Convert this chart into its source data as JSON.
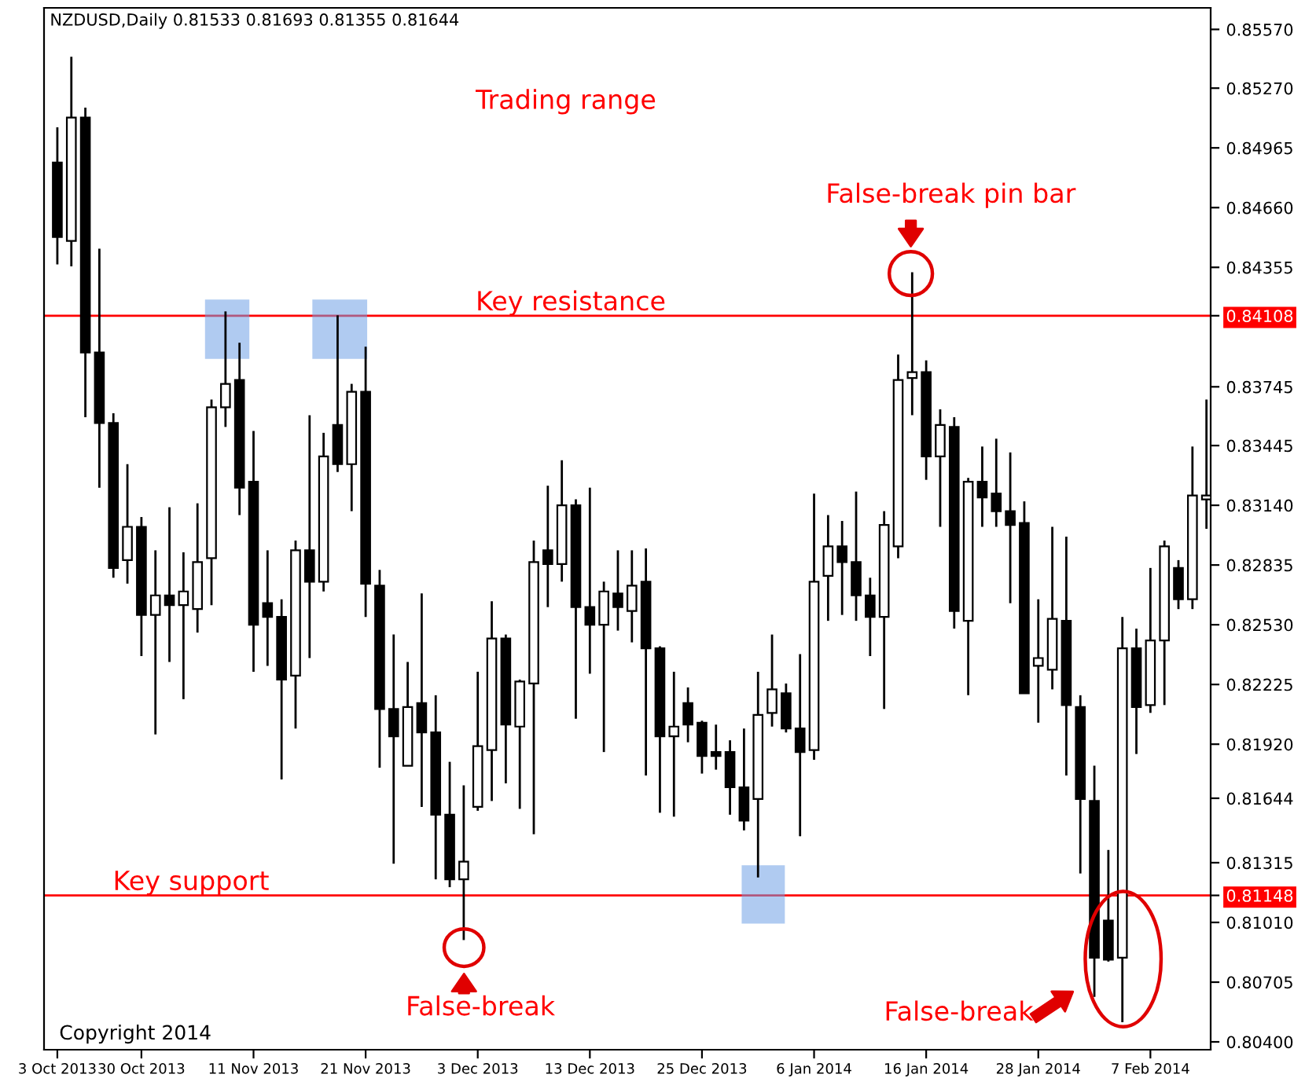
{
  "chart_data": {
    "type": "candlestick",
    "title": "NZDUSD,Daily 0.81533 0.81693 0.81355 0.81644",
    "categories": [
      "3 Oct 2013",
      null,
      null,
      null,
      null,
      null,
      "30 Oct 2013",
      null,
      null,
      null,
      null,
      null,
      null,
      null,
      "11 Nov 2013",
      null,
      null,
      null,
      null,
      null,
      null,
      null,
      "21 Nov 2013",
      null,
      null,
      null,
      null,
      null,
      null,
      null,
      "3 Dec 2013",
      null,
      null,
      null,
      null,
      null,
      null,
      null,
      "13 Dec 2013",
      null,
      null,
      null,
      null,
      null,
      null,
      null,
      "25 Dec 2013",
      null,
      null,
      null,
      null,
      null,
      null,
      null,
      "6 Jan 2014",
      null,
      null,
      null,
      null,
      null,
      null,
      null,
      "16 Jan 2014",
      null,
      null,
      null,
      null,
      null,
      null,
      null,
      "28 Jan 2014",
      null,
      null,
      null,
      null,
      null,
      null,
      null,
      "7 Feb 2014",
      null,
      null,
      null,
      null
    ],
    "ohlc": [
      [
        0.8489,
        0.8507,
        0.8437,
        0.8451
      ],
      [
        0.8449,
        0.8543,
        0.8436,
        0.8512
      ],
      [
        0.8512,
        0.8517,
        0.8359,
        0.8392
      ],
      [
        0.8392,
        0.8445,
        0.8323,
        0.8356
      ],
      [
        0.8356,
        0.8361,
        0.8277,
        0.8282
      ],
      [
        0.8286,
        0.8335,
        0.8274,
        0.8303
      ],
      [
        0.8303,
        0.8308,
        0.8237,
        0.8258
      ],
      [
        0.8258,
        0.8291,
        0.8197,
        0.8268
      ],
      [
        0.8268,
        0.8313,
        0.8234,
        0.8263
      ],
      [
        0.8263,
        0.829,
        0.8215,
        0.827
      ],
      [
        0.8261,
        0.8315,
        0.8249,
        0.8285
      ],
      [
        0.8287,
        0.8368,
        0.8263,
        0.8364
      ],
      [
        0.8364,
        0.8413,
        0.8354,
        0.8376
      ],
      [
        0.8378,
        0.8397,
        0.8309,
        0.8323
      ],
      [
        0.8326,
        0.8352,
        0.8229,
        0.8253
      ],
      [
        0.8264,
        0.8291,
        0.8232,
        0.8257
      ],
      [
        0.8257,
        0.8266,
        0.8174,
        0.8225
      ],
      [
        0.8227,
        0.8296,
        0.82,
        0.8291
      ],
      [
        0.8291,
        0.836,
        0.8236,
        0.8275
      ],
      [
        0.8275,
        0.8351,
        0.827,
        0.8339
      ],
      [
        0.8355,
        0.8411,
        0.8331,
        0.8335
      ],
      [
        0.8335,
        0.8376,
        0.8311,
        0.8372
      ],
      [
        0.8372,
        0.8395,
        0.8257,
        0.8274
      ],
      [
        0.8273,
        0.8281,
        0.818,
        0.821
      ],
      [
        0.821,
        0.8248,
        0.8131,
        0.8196
      ],
      [
        0.8181,
        0.8234,
        0.8181,
        0.8211
      ],
      [
        0.8213,
        0.8269,
        0.816,
        0.8198
      ],
      [
        0.8198,
        0.8217,
        0.8123,
        0.8156
      ],
      [
        0.8156,
        0.8183,
        0.8119,
        0.8123
      ],
      [
        0.8123,
        0.8171,
        0.8092,
        0.8132
      ],
      [
        0.816,
        0.8229,
        0.8158,
        0.8191
      ],
      [
        0.8189,
        0.8265,
        0.8163,
        0.8246
      ],
      [
        0.8246,
        0.8248,
        0.8172,
        0.8202
      ],
      [
        0.8201,
        0.8225,
        0.8159,
        0.8224
      ],
      [
        0.8223,
        0.8296,
        0.8146,
        0.8285
      ],
      [
        0.8291,
        0.8324,
        0.8262,
        0.8284
      ],
      [
        0.8284,
        0.8337,
        0.8275,
        0.8314
      ],
      [
        0.8314,
        0.8317,
        0.8205,
        0.8262
      ],
      [
        0.8262,
        0.8323,
        0.8228,
        0.8253
      ],
      [
        0.8253,
        0.8275,
        0.8188,
        0.827
      ],
      [
        0.8269,
        0.8291,
        0.825,
        0.8262
      ],
      [
        0.826,
        0.8291,
        0.8244,
        0.8273
      ],
      [
        0.8275,
        0.8292,
        0.8176,
        0.8241
      ],
      [
        0.8241,
        0.8242,
        0.8157,
        0.8196
      ],
      [
        0.8196,
        0.8229,
        0.8155,
        0.8201
      ],
      [
        0.8213,
        0.8221,
        0.8193,
        0.8202
      ],
      [
        0.8203,
        0.8204,
        0.8177,
        0.8186
      ],
      [
        0.8188,
        0.8202,
        0.8179,
        0.8186
      ],
      [
        0.8188,
        0.8194,
        0.8156,
        0.817
      ],
      [
        0.817,
        0.82,
        0.8148,
        0.8153
      ],
      [
        0.8164,
        0.8229,
        0.8124,
        0.8207
      ],
      [
        0.8208,
        0.8248,
        0.8201,
        0.822
      ],
      [
        0.8218,
        0.8223,
        0.8198,
        0.82
      ],
      [
        0.82,
        0.8238,
        0.8145,
        0.8188
      ],
      [
        0.8189,
        0.832,
        0.8184,
        0.8275
      ],
      [
        0.8278,
        0.8309,
        0.8255,
        0.8293
      ],
      [
        0.8293,
        0.8306,
        0.8258,
        0.8285
      ],
      [
        0.8285,
        0.8321,
        0.8255,
        0.8268
      ],
      [
        0.8268,
        0.8277,
        0.8237,
        0.8257
      ],
      [
        0.8257,
        0.8311,
        0.821,
        0.8304
      ],
      [
        0.8293,
        0.8391,
        0.8287,
        0.8378
      ],
      [
        0.8379,
        0.8433,
        0.836,
        0.8382
      ],
      [
        0.8382,
        0.8388,
        0.8327,
        0.8339
      ],
      [
        0.8339,
        0.8363,
        0.8303,
        0.8355
      ],
      [
        0.8354,
        0.8359,
        0.8251,
        0.826
      ],
      [
        0.8255,
        0.8328,
        0.8217,
        0.8326
      ],
      [
        0.8326,
        0.8344,
        0.8303,
        0.8318
      ],
      [
        0.832,
        0.8348,
        0.8303,
        0.8311
      ],
      [
        0.8311,
        0.8341,
        0.8264,
        0.8304
      ],
      [
        0.8305,
        0.8316,
        0.8218,
        0.8218
      ],
      [
        0.8232,
        0.8266,
        0.8203,
        0.8236
      ],
      [
        0.823,
        0.8303,
        0.822,
        0.8256
      ],
      [
        0.8255,
        0.8298,
        0.8176,
        0.8212
      ],
      [
        0.8211,
        0.8217,
        0.8126,
        0.8164
      ],
      [
        0.8163,
        0.8181,
        0.8063,
        0.8083
      ],
      [
        0.8102,
        0.8138,
        0.8081,
        0.8082
      ],
      [
        0.8083,
        0.8257,
        0.805,
        0.8241
      ],
      [
        0.8241,
        0.8251,
        0.8187,
        0.8211
      ],
      [
        0.8212,
        0.8282,
        0.8208,
        0.8245
      ],
      [
        0.8245,
        0.8296,
        0.8212,
        0.8293
      ],
      [
        0.8282,
        0.8286,
        0.8261,
        0.8266
      ],
      [
        0.8266,
        0.8344,
        0.8261,
        0.8319
      ],
      [
        0.8317,
        0.8368,
        0.8302,
        0.8319
      ]
    ],
    "ylim": [
      0.8036,
      0.8568
    ],
    "yticks": [
      {
        "value": 0.8557,
        "label": "0.85570"
      },
      {
        "value": 0.8527,
        "label": "0.85270"
      },
      {
        "value": 0.84965,
        "label": "0.84965"
      },
      {
        "value": 0.8466,
        "label": "0.84660"
      },
      {
        "value": 0.84355,
        "label": "0.84355"
      },
      {
        "value": 0.84108,
        "label": "0.84108"
      },
      {
        "value": 0.83745,
        "label": "0.83745"
      },
      {
        "value": 0.83445,
        "label": "0.83445"
      },
      {
        "value": 0.8314,
        "label": "0.83140"
      },
      {
        "value": 0.82835,
        "label": "0.82835"
      },
      {
        "value": 0.8253,
        "label": "0.82530"
      },
      {
        "value": 0.82225,
        "label": "0.82225"
      },
      {
        "value": 0.8192,
        "label": "0.81920"
      },
      {
        "value": 0.81644,
        "label": "0.81644"
      },
      {
        "value": 0.81315,
        "label": "0.81315"
      },
      {
        "value": 0.81148,
        "label": "0.81148"
      },
      {
        "value": 0.8101,
        "label": "0.81010"
      },
      {
        "value": 0.80705,
        "label": "0.80705"
      },
      {
        "value": 0.804,
        "label": "0.80400"
      }
    ],
    "ref_lines": [
      {
        "axis": "y",
        "value": 0.84108,
        "label": "Key resistance",
        "color": "#ff0000"
      },
      {
        "axis": "y",
        "value": 0.81148,
        "label": "Key support",
        "color": "#ff0000"
      }
    ],
    "annotations": [
      "Trading range",
      "False-break pin bar",
      "False-break",
      "False-break",
      "Copyright 2014"
    ],
    "grid": false
  }
}
